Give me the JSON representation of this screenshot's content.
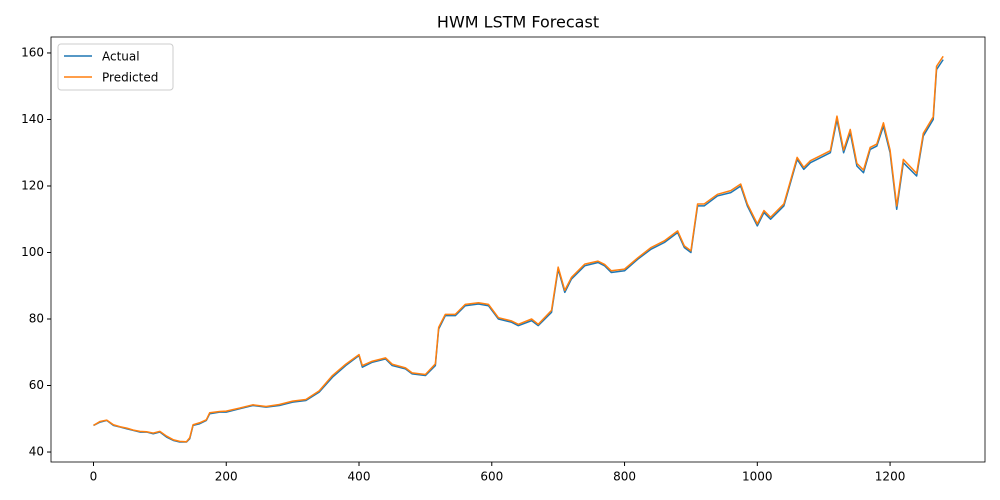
{
  "chart_data": {
    "type": "line",
    "title": "HWM LSTM Forecast",
    "x": [
      0,
      10,
      20,
      30,
      40,
      50,
      60,
      70,
      80,
      90,
      100,
      110,
      120,
      130,
      140,
      145,
      150,
      160,
      170,
      175,
      190,
      200,
      220,
      240,
      260,
      280,
      300,
      320,
      340,
      360,
      380,
      400,
      405,
      420,
      440,
      450,
      470,
      480,
      500,
      515,
      520,
      530,
      545,
      560,
      580,
      595,
      610,
      630,
      640,
      660,
      670,
      690,
      700,
      710,
      720,
      740,
      760,
      770,
      780,
      800,
      820,
      840,
      860,
      880,
      890,
      900,
      910,
      920,
      940,
      960,
      975,
      985,
      1000,
      1010,
      1020,
      1040,
      1050,
      1060,
      1070,
      1080,
      1100,
      1110,
      1120,
      1130,
      1140,
      1150,
      1160,
      1170,
      1180,
      1190,
      1200,
      1210,
      1220,
      1240,
      1250,
      1265,
      1270,
      1280
    ],
    "series": [
      {
        "name": "Actual",
        "color": "#1f77b4",
        "values": [
          48,
          49,
          49.5,
          48,
          47.5,
          47,
          46.5,
          46,
          46,
          45.5,
          46,
          44.5,
          43.5,
          43,
          43,
          44,
          48,
          48.5,
          49.5,
          51.5,
          52,
          52,
          53,
          54,
          53.5,
          54,
          55,
          55.5,
          58,
          62.5,
          66,
          69,
          65.5,
          67,
          68,
          66,
          65,
          63.5,
          63,
          66,
          77,
          81,
          81,
          84,
          84.5,
          84,
          80,
          79,
          78,
          79.5,
          78,
          82,
          95,
          88,
          92,
          96,
          97,
          96,
          94,
          94.5,
          98,
          101,
          103,
          106,
          101.5,
          100,
          114,
          114,
          117,
          118,
          120,
          114,
          108,
          112,
          110,
          114,
          121,
          128,
          125,
          127,
          129,
          130,
          140,
          130,
          136,
          126,
          124,
          131,
          132,
          138,
          130,
          113,
          127,
          123,
          135,
          140,
          155,
          158
        ]
      },
      {
        "name": "Predicted",
        "color": "#ff7f0e",
        "values": [
          48,
          49.2,
          49.6,
          48.2,
          47.6,
          47.2,
          46.6,
          46.2,
          46.1,
          45.7,
          46.2,
          44.8,
          43.7,
          43.2,
          43.1,
          44.3,
          48.2,
          48.8,
          49.7,
          51.8,
          52.2,
          52.3,
          53.2,
          54.2,
          53.7,
          54.3,
          55.3,
          55.8,
          58.4,
          63,
          66.4,
          69.3,
          66,
          67.3,
          68.3,
          66.4,
          65.3,
          63.8,
          63.3,
          66.5,
          77.5,
          81.4,
          81.4,
          84.4,
          84.9,
          84.4,
          80.4,
          79.4,
          78.4,
          80,
          78.4,
          82.6,
          95.6,
          88.6,
          92.5,
          96.5,
          97.4,
          96.4,
          94.5,
          95,
          98.4,
          101.5,
          103.5,
          106.5,
          102,
          100.5,
          114.6,
          114.6,
          117.5,
          118.6,
          120.6,
          114.6,
          108.6,
          112.6,
          110.6,
          114.6,
          121.6,
          128.6,
          125.6,
          127.6,
          129.6,
          130.6,
          141,
          130.8,
          137,
          126.8,
          124.8,
          131.6,
          132.6,
          139,
          130.8,
          114,
          128,
          123.8,
          135.8,
          140.8,
          156,
          159
        ]
      }
    ],
    "xlim": [
      -64,
      1343
    ],
    "ylim": [
      37,
      164.8
    ],
    "xticks": [
      0,
      200,
      400,
      600,
      800,
      1000,
      1200
    ],
    "yticks": [
      40,
      60,
      80,
      100,
      120,
      140,
      160
    ],
    "grid": false,
    "legend": "upper-left"
  }
}
